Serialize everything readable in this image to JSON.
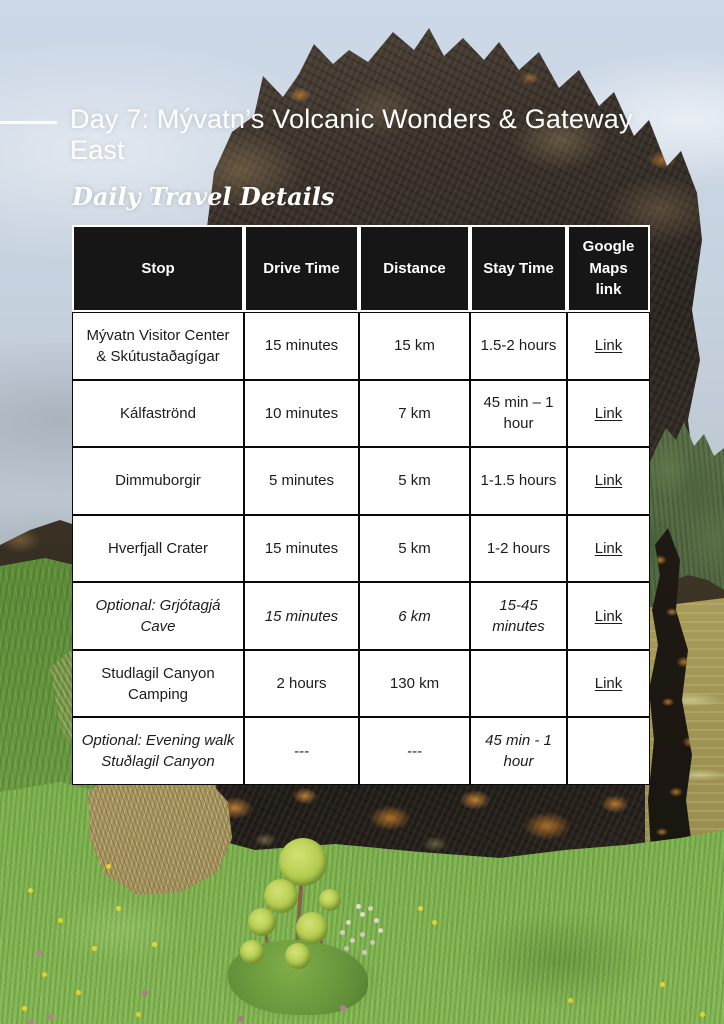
{
  "page": {
    "title": "Day 7: Mývatn’s Volcanic Wonders & Gateway East",
    "subtitle": "Daily Travel Details"
  },
  "table": {
    "headers": [
      "Stop",
      "Drive Time",
      "Distance",
      "Stay Time",
      "Google Maps link"
    ],
    "rows": [
      {
        "stop": "Mývatn Visitor Center & Skútustaðagígar",
        "drive_time": "15 minutes",
        "distance": "15 km",
        "stay_time": "1.5-2 hours",
        "link": "Link",
        "optional": false
      },
      {
        "stop": "Kálfaströnd",
        "drive_time": "10 minutes",
        "distance": "7 km",
        "stay_time": "45 min – 1 hour",
        "link": "Link",
        "optional": false
      },
      {
        "stop": "Dimmuborgir",
        "drive_time": "5 minutes",
        "distance": "5 km",
        "stay_time": "1-1.5 hours",
        "link": "Link",
        "optional": false
      },
      {
        "stop": "Hverfjall Crater",
        "drive_time": "15 minutes",
        "distance": "5 km",
        "stay_time": "1-2 hours",
        "link": "Link",
        "optional": false
      },
      {
        "stop": "Optional: Grjótagjá Cave",
        "drive_time": "15 minutes",
        "distance": "6 km",
        "stay_time": "15-45 minutes",
        "link": "Link",
        "optional": true
      },
      {
        "stop": "Studlagil Canyon Camping",
        "drive_time": "2 hours",
        "distance": "130 km",
        "stay_time": "",
        "link": "Link",
        "optional": false
      },
      {
        "stop": "Optional: Evening walk Stuðlagil Canyon",
        "drive_time": "---",
        "distance": "---",
        "stay_time": "45 min - 1 hour",
        "link": "",
        "optional": true
      }
    ]
  },
  "colors": {
    "header_bg": "#161616",
    "cell_bg": "#ffffff",
    "table_border": "#0a0a0a",
    "body_text": "#1c1c1c",
    "title_text": "#ffffff",
    "sky": "#c9d5e3",
    "lava_rock": "#2b2520",
    "grass": "#6fa045",
    "water": "#948c50",
    "lichen_orange": "#cd8634"
  }
}
